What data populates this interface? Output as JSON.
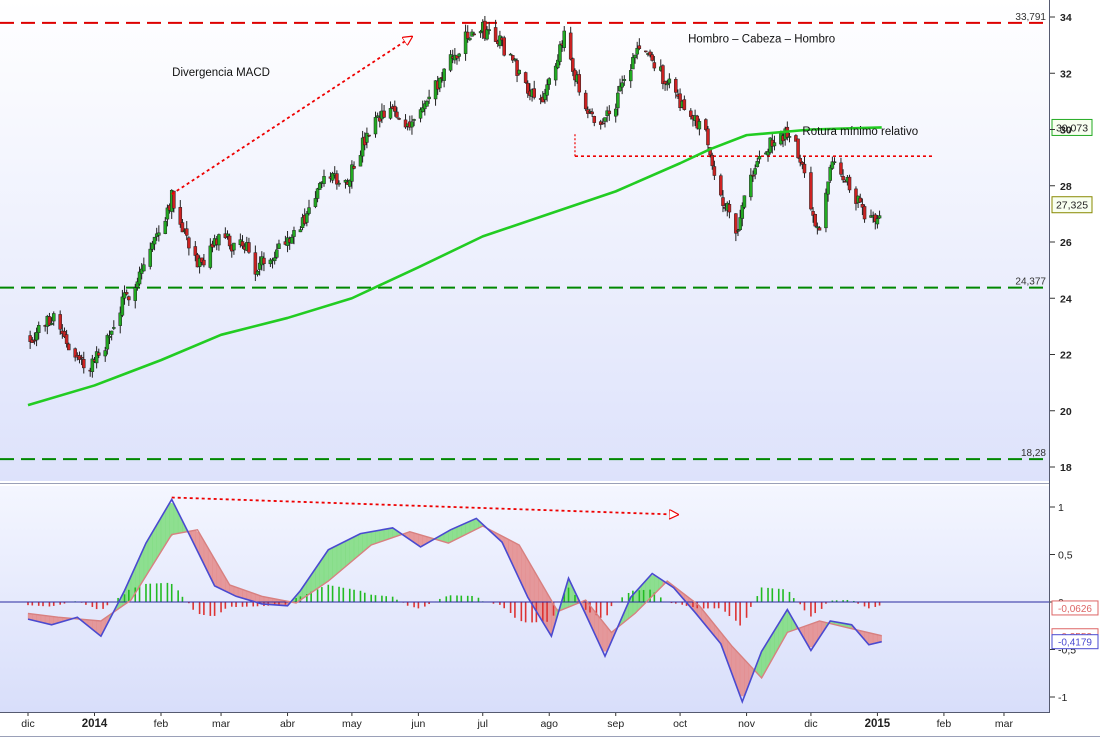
{
  "chart_data": [
    {
      "type": "candlestick",
      "title": "",
      "xlabel": "",
      "ylabel": "",
      "ylim": [
        17.5,
        34.5
      ],
      "yticks": [
        18,
        20,
        22,
        24,
        26,
        28,
        30,
        32,
        34
      ],
      "grid": false,
      "series": [
        {
          "type": "candlestick",
          "close_path": [
            [
              "2013-12-02",
              22.6
            ],
            [
              "2013-12-09",
              23.1
            ],
            [
              "2013-12-13",
              23.4
            ],
            [
              "2013-12-18",
              22.7
            ],
            [
              "2013-12-23",
              21.8
            ],
            [
              "2013-12-30",
              21.6
            ],
            [
              "2014-01-03",
              22.0
            ],
            [
              "2014-01-08",
              22.6
            ],
            [
              "2014-01-14",
              23.8
            ],
            [
              "2014-01-20",
              24.6
            ],
            [
              "2014-01-27",
              25.7
            ],
            [
              "2014-02-03",
              27.0
            ],
            [
              "2014-02-06",
              27.6
            ],
            [
              "2014-02-10",
              26.8
            ],
            [
              "2014-02-14",
              26.0
            ],
            [
              "2014-02-18",
              25.3
            ],
            [
              "2014-02-21",
              25.0
            ],
            [
              "2014-02-26",
              26.0
            ],
            [
              "2014-03-03",
              26.2
            ],
            [
              "2014-03-07",
              25.7
            ],
            [
              "2014-03-12",
              26.0
            ],
            [
              "2014-03-17",
              25.0
            ],
            [
              "2014-03-21",
              25.3
            ],
            [
              "2014-03-26",
              25.7
            ],
            [
              "2014-04-01",
              26.2
            ],
            [
              "2014-04-07",
              26.5
            ],
            [
              "2014-04-14",
              27.7
            ],
            [
              "2014-04-21",
              28.4
            ],
            [
              "2014-04-28",
              28.1
            ],
            [
              "2014-05-05",
              29.3
            ],
            [
              "2014-05-12",
              30.2
            ],
            [
              "2014-05-19",
              30.7
            ],
            [
              "2014-05-26",
              30.2
            ],
            [
              "2014-06-02",
              30.6
            ],
            [
              "2014-06-09",
              31.5
            ],
            [
              "2014-06-16",
              32.4
            ],
            [
              "2014-06-23",
              33.2
            ],
            [
              "2014-06-30",
              33.6
            ],
            [
              "2014-07-07",
              33.3
            ],
            [
              "2014-07-14",
              32.6
            ],
            [
              "2014-07-21",
              31.6
            ],
            [
              "2014-07-28",
              31.1
            ],
            [
              "2014-08-04",
              32.0
            ],
            [
              "2014-08-08",
              33.5
            ],
            [
              "2014-08-13",
              32.0
            ],
            [
              "2014-08-18",
              30.5
            ],
            [
              "2014-08-25",
              30.2
            ],
            [
              "2014-09-01",
              31.0
            ],
            [
              "2014-09-08",
              32.2
            ],
            [
              "2014-09-12",
              33.0
            ],
            [
              "2014-09-17",
              32.5
            ],
            [
              "2014-09-22",
              32.0
            ],
            [
              "2014-09-29",
              31.3
            ],
            [
              "2014-10-06",
              30.4
            ],
            [
              "2014-10-13",
              30.0
            ],
            [
              "2014-10-17",
              28.5
            ],
            [
              "2014-10-22",
              27.3
            ],
            [
              "2014-10-27",
              26.4
            ],
            [
              "2014-11-01",
              27.8
            ],
            [
              "2014-11-07",
              29.0
            ],
            [
              "2014-11-14",
              29.6
            ],
            [
              "2014-11-19",
              29.8
            ],
            [
              "2014-11-24",
              29.4
            ],
            [
              "2014-11-28",
              28.5
            ],
            [
              "2014-12-02",
              26.8
            ],
            [
              "2014-12-05",
              26.5
            ],
            [
              "2014-12-09",
              28.4
            ],
            [
              "2014-12-13",
              28.8
            ],
            [
              "2014-12-17",
              28.3
            ],
            [
              "2014-12-22",
              27.6
            ],
            [
              "2014-12-26",
              26.8
            ],
            [
              "2015-01-01",
              27.0
            ],
            [
              "2015-01-03",
              27.325
            ]
          ]
        },
        {
          "type": "line",
          "name": "",
          "color": "#22cc22",
          "points": [
            [
              "2013-12-01",
              20.2
            ],
            [
              "2014-01-01",
              20.9
            ],
            [
              "2014-02-01",
              21.8
            ],
            [
              "2014-03-01",
              22.7
            ],
            [
              "2014-04-01",
              23.3
            ],
            [
              "2014-05-01",
              24.0
            ],
            [
              "2014-06-01",
              25.1
            ],
            [
              "2014-07-01",
              26.2
            ],
            [
              "2014-08-01",
              27.0
            ],
            [
              "2014-09-01",
              27.8
            ],
            [
              "2014-10-01",
              28.8
            ],
            [
              "2014-10-15",
              29.3
            ],
            [
              "2014-11-01",
              29.8
            ],
            [
              "2014-12-01",
              30.0
            ],
            [
              "2015-01-03",
              30.073
            ]
          ]
        }
      ],
      "reference_lines": [
        {
          "value": 33.791,
          "label": "33,791",
          "color": "#dd0000",
          "style": "dashed"
        },
        {
          "value": 24.377,
          "label": "24,377",
          "color": "#008800",
          "style": "dashed"
        },
        {
          "value": 18.28,
          "label": "18,28",
          "color": "#008800",
          "style": "dashed"
        }
      ],
      "value_tags": [
        {
          "value": 30.073,
          "label": "30,073",
          "color": "#22aa22"
        },
        {
          "value": 27.325,
          "label": "27,325",
          "color": "#888800"
        }
      ],
      "annotations": [
        {
          "text": "Divergencia MACD",
          "x": "2014-03-01",
          "y": 31.9
        },
        {
          "text": "Hombro – Cabeza – Hombro",
          "x": "2014-11-08",
          "y": 33.1
        },
        {
          "text": "Rotura mínimo relativo",
          "x": "2014-12-24",
          "y": 29.8
        }
      ],
      "trend_arrows": [
        {
          "from": [
            "2014-02-06",
            27.7
          ],
          "to": [
            "2014-05-29",
            33.3
          ],
          "color": "#ee0000",
          "style": "dotted"
        }
      ],
      "neckline": {
        "from": "2014-08-13",
        "to": "2015-01-27",
        "value": 29.05,
        "color": "#ee0000",
        "style": "dotted"
      }
    },
    {
      "type": "macd",
      "ylim": [
        -1.1,
        1.15
      ],
      "yticks": [
        -1,
        -0.5,
        0,
        0.5,
        1
      ],
      "ytick_labels": [
        "-1",
        "-0,5",
        "0",
        "0,5",
        "1"
      ],
      "grid": false,
      "series": [
        {
          "name": "",
          "color": "#4a4ad0",
          "points": [
            [
              "2013-12-01",
              -0.18
            ],
            [
              "2013-12-12",
              -0.24
            ],
            [
              "2013-12-24",
              -0.16
            ],
            [
              "2014-01-04",
              -0.36
            ],
            [
              "2014-01-15",
              0.12
            ],
            [
              "2014-01-25",
              0.62
            ],
            [
              "2014-02-06",
              1.08
            ],
            [
              "2014-02-14",
              0.72
            ],
            [
              "2014-02-26",
              0.17
            ],
            [
              "2014-03-08",
              0.06
            ],
            [
              "2014-03-20",
              -0.02
            ],
            [
              "2014-04-01",
              -0.04
            ],
            [
              "2014-04-07",
              0.12
            ],
            [
              "2014-04-20",
              0.55
            ],
            [
              "2014-05-05",
              0.72
            ],
            [
              "2014-05-20",
              0.78
            ],
            [
              "2014-06-02",
              0.58
            ],
            [
              "2014-06-16",
              0.76
            ],
            [
              "2014-06-28",
              0.88
            ],
            [
              "2014-07-10",
              0.63
            ],
            [
              "2014-07-22",
              0.05
            ],
            [
              "2014-08-02",
              -0.36
            ],
            [
              "2014-08-10",
              0.25
            ],
            [
              "2014-08-18",
              -0.13
            ],
            [
              "2014-08-27",
              -0.57
            ],
            [
              "2014-09-08",
              0.05
            ],
            [
              "2014-09-18",
              0.3
            ],
            [
              "2014-09-28",
              0.15
            ],
            [
              "2014-10-08",
              -0.11
            ],
            [
              "2014-10-20",
              -0.44
            ],
            [
              "2014-10-30",
              -1.05
            ],
            [
              "2014-11-08",
              -0.52
            ],
            [
              "2014-11-20",
              -0.08
            ],
            [
              "2014-12-01",
              -0.51
            ],
            [
              "2014-12-10",
              -0.2
            ],
            [
              "2014-12-20",
              -0.24
            ],
            [
              "2014-12-28",
              -0.45
            ],
            [
              "2015-01-03",
              -0.418
            ]
          ]
        },
        {
          "name": "",
          "color": "#d88080",
          "points": [
            [
              "2013-12-01",
              -0.12
            ],
            [
              "2013-12-15",
              -0.16
            ],
            [
              "2014-01-04",
              -0.2
            ],
            [
              "2014-01-18",
              0.02
            ],
            [
              "2014-02-06",
              0.71
            ],
            [
              "2014-02-18",
              0.76
            ],
            [
              "2014-03-05",
              0.18
            ],
            [
              "2014-03-20",
              0.06
            ],
            [
              "2014-04-05",
              -0.01
            ],
            [
              "2014-04-20",
              0.22
            ],
            [
              "2014-05-10",
              0.6
            ],
            [
              "2014-05-28",
              0.74
            ],
            [
              "2014-06-15",
              0.62
            ],
            [
              "2014-07-01",
              0.8
            ],
            [
              "2014-07-18",
              0.6
            ],
            [
              "2014-08-05",
              -0.1
            ],
            [
              "2014-08-18",
              0.02
            ],
            [
              "2014-08-30",
              -0.32
            ],
            [
              "2014-09-10",
              -0.12
            ],
            [
              "2014-09-25",
              0.22
            ],
            [
              "2014-10-10",
              -0.04
            ],
            [
              "2014-10-25",
              -0.46
            ],
            [
              "2014-11-08",
              -0.8
            ],
            [
              "2014-11-20",
              -0.32
            ],
            [
              "2014-12-05",
              -0.2
            ],
            [
              "2014-12-18",
              -0.27
            ],
            [
              "2015-01-03",
              -0.355
            ]
          ]
        }
      ],
      "value_tags": [
        {
          "value": -0.0626,
          "label": "-0,0626",
          "color": "#dd6666"
        },
        {
          "value": -0.3553,
          "label": "-0,3553",
          "color": "#dd6666"
        },
        {
          "value": -0.4179,
          "label": "-0,4179",
          "color": "#4a4ad0"
        }
      ],
      "trend_arrows": [
        {
          "from": [
            "2014-02-06",
            1.1
          ],
          "to": [
            "2014-09-30",
            0.92
          ],
          "color": "#ee0000",
          "style": "dotted"
        }
      ]
    }
  ],
  "x_axis": {
    "labels": [
      {
        "text": "dic",
        "date": "2013-12-01",
        "bold": false
      },
      {
        "text": "2014",
        "date": "2014-01-01",
        "bold": true
      },
      {
        "text": "feb",
        "date": "2014-02-01",
        "bold": false
      },
      {
        "text": "mar",
        "date": "2014-03-01",
        "bold": false
      },
      {
        "text": "abr",
        "date": "2014-04-01",
        "bold": false
      },
      {
        "text": "may",
        "date": "2014-05-01",
        "bold": false
      },
      {
        "text": "jun",
        "date": "2014-06-01",
        "bold": false
      },
      {
        "text": "jul",
        "date": "2014-07-01",
        "bold": false
      },
      {
        "text": "ago",
        "date": "2014-08-01",
        "bold": false
      },
      {
        "text": "sep",
        "date": "2014-09-01",
        "bold": false
      },
      {
        "text": "oct",
        "date": "2014-10-01",
        "bold": false
      },
      {
        "text": "nov",
        "date": "2014-11-01",
        "bold": false
      },
      {
        "text": "dic",
        "date": "2014-12-01",
        "bold": false
      },
      {
        "text": "2015",
        "date": "2015-01-01",
        "bold": true
      },
      {
        "text": "feb",
        "date": "2015-02-01",
        "bold": false
      },
      {
        "text": "mar",
        "date": "2015-03-01",
        "bold": false
      }
    ]
  },
  "colors": {
    "background_top": "#ffffff",
    "background_bottom": "#dde2fb",
    "up_candle": "#22aa22",
    "down_candle": "#cc2222",
    "histogram_up": "#22bb22",
    "histogram_down": "#dd3333"
  }
}
